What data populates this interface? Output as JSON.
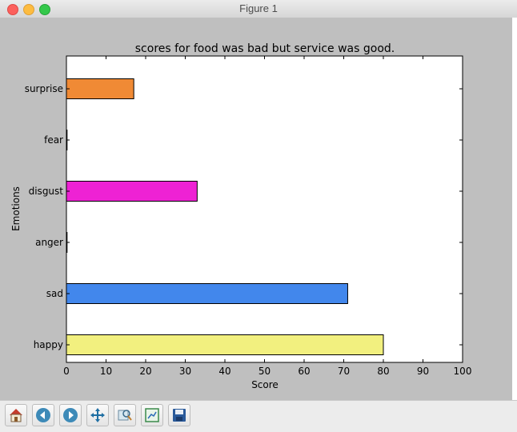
{
  "window": {
    "title": "Figure 1"
  },
  "chart_data": {
    "type": "bar",
    "orientation": "horizontal",
    "title": "scores for food was bad but service was good.",
    "xlabel": "Score",
    "ylabel": "Emotions",
    "xlim": [
      0,
      100
    ],
    "xticks": [
      "0",
      "10",
      "20",
      "30",
      "40",
      "50",
      "60",
      "70",
      "80",
      "90",
      "100"
    ],
    "categories": [
      "happy",
      "sad",
      "anger",
      "disgust",
      "fear",
      "surprise"
    ],
    "values": [
      80,
      71,
      0,
      33,
      0,
      17
    ],
    "colors": [
      "#f2f07f",
      "#4287ec",
      "#ffffff",
      "#ee22d4",
      "#ffffff",
      "#f08a35"
    ],
    "grid": false,
    "legend": "none"
  },
  "toolbar": {
    "buttons": [
      {
        "name": "home-icon"
      },
      {
        "name": "back-icon"
      },
      {
        "name": "forward-icon"
      },
      {
        "name": "pan-icon"
      },
      {
        "name": "zoom-icon"
      },
      {
        "name": "configure-subplots-icon"
      },
      {
        "name": "save-icon"
      }
    ]
  }
}
